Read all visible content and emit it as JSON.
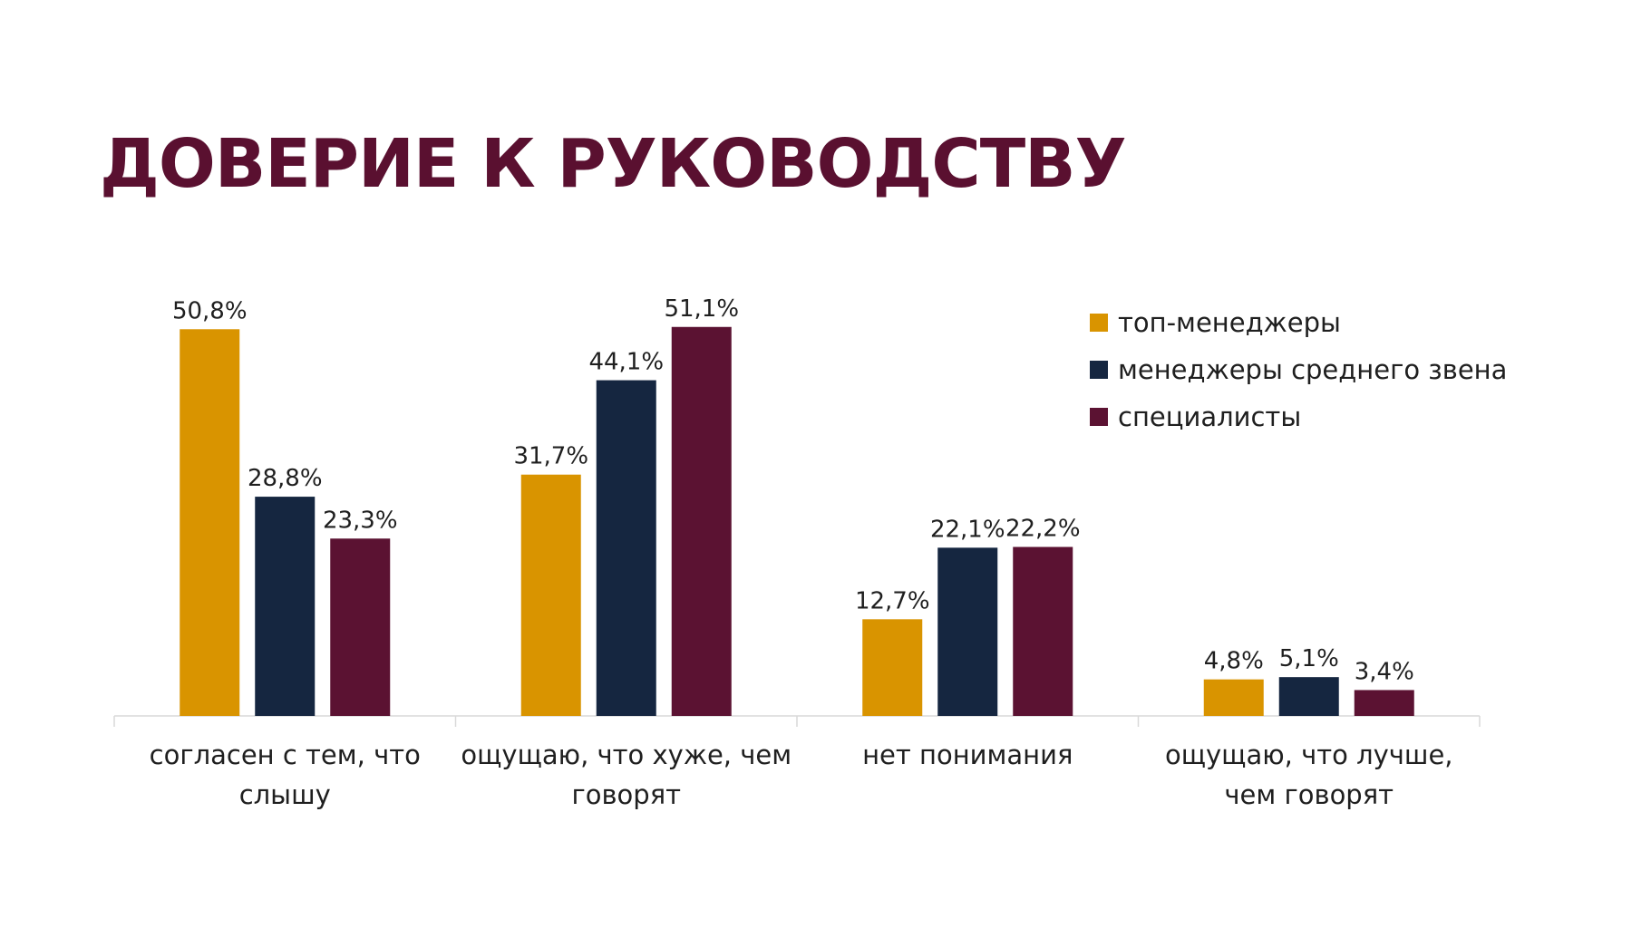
{
  "title": "ДОВЕРИЕ К РУКОВОДСТВУ",
  "chart_data": {
    "type": "bar",
    "categories": [
      [
        "согласен с тем, что",
        "слышу"
      ],
      [
        "ощущаю, что хуже, чем",
        "говорят"
      ],
      [
        "нет понимания"
      ],
      [
        "ощущаю, что лучше,",
        "чем говорят"
      ]
    ],
    "series": [
      {
        "name": "топ-менеджеры",
        "color": "#d99400",
        "values": [
          50.8,
          31.7,
          12.7,
          4.8
        ],
        "labels": [
          "50,8%",
          "31,7%",
          "12,7%",
          "4,8%"
        ]
      },
      {
        "name": "менеджеры среднего звена",
        "color": "#152640",
        "values": [
          28.8,
          44.1,
          22.1,
          5.1
        ],
        "labels": [
          "28,8%",
          "44,1%",
          "22,1%",
          "5,1%"
        ]
      },
      {
        "name": "специалисты",
        "color": "#5b1232",
        "values": [
          23.3,
          51.1,
          22.2,
          3.4
        ],
        "labels": [
          "23,3%",
          "51,1%",
          "22,2%",
          "3,4%"
        ]
      }
    ],
    "ylim": [
      0,
      55
    ],
    "grid": false,
    "legend_position": "top-right"
  }
}
